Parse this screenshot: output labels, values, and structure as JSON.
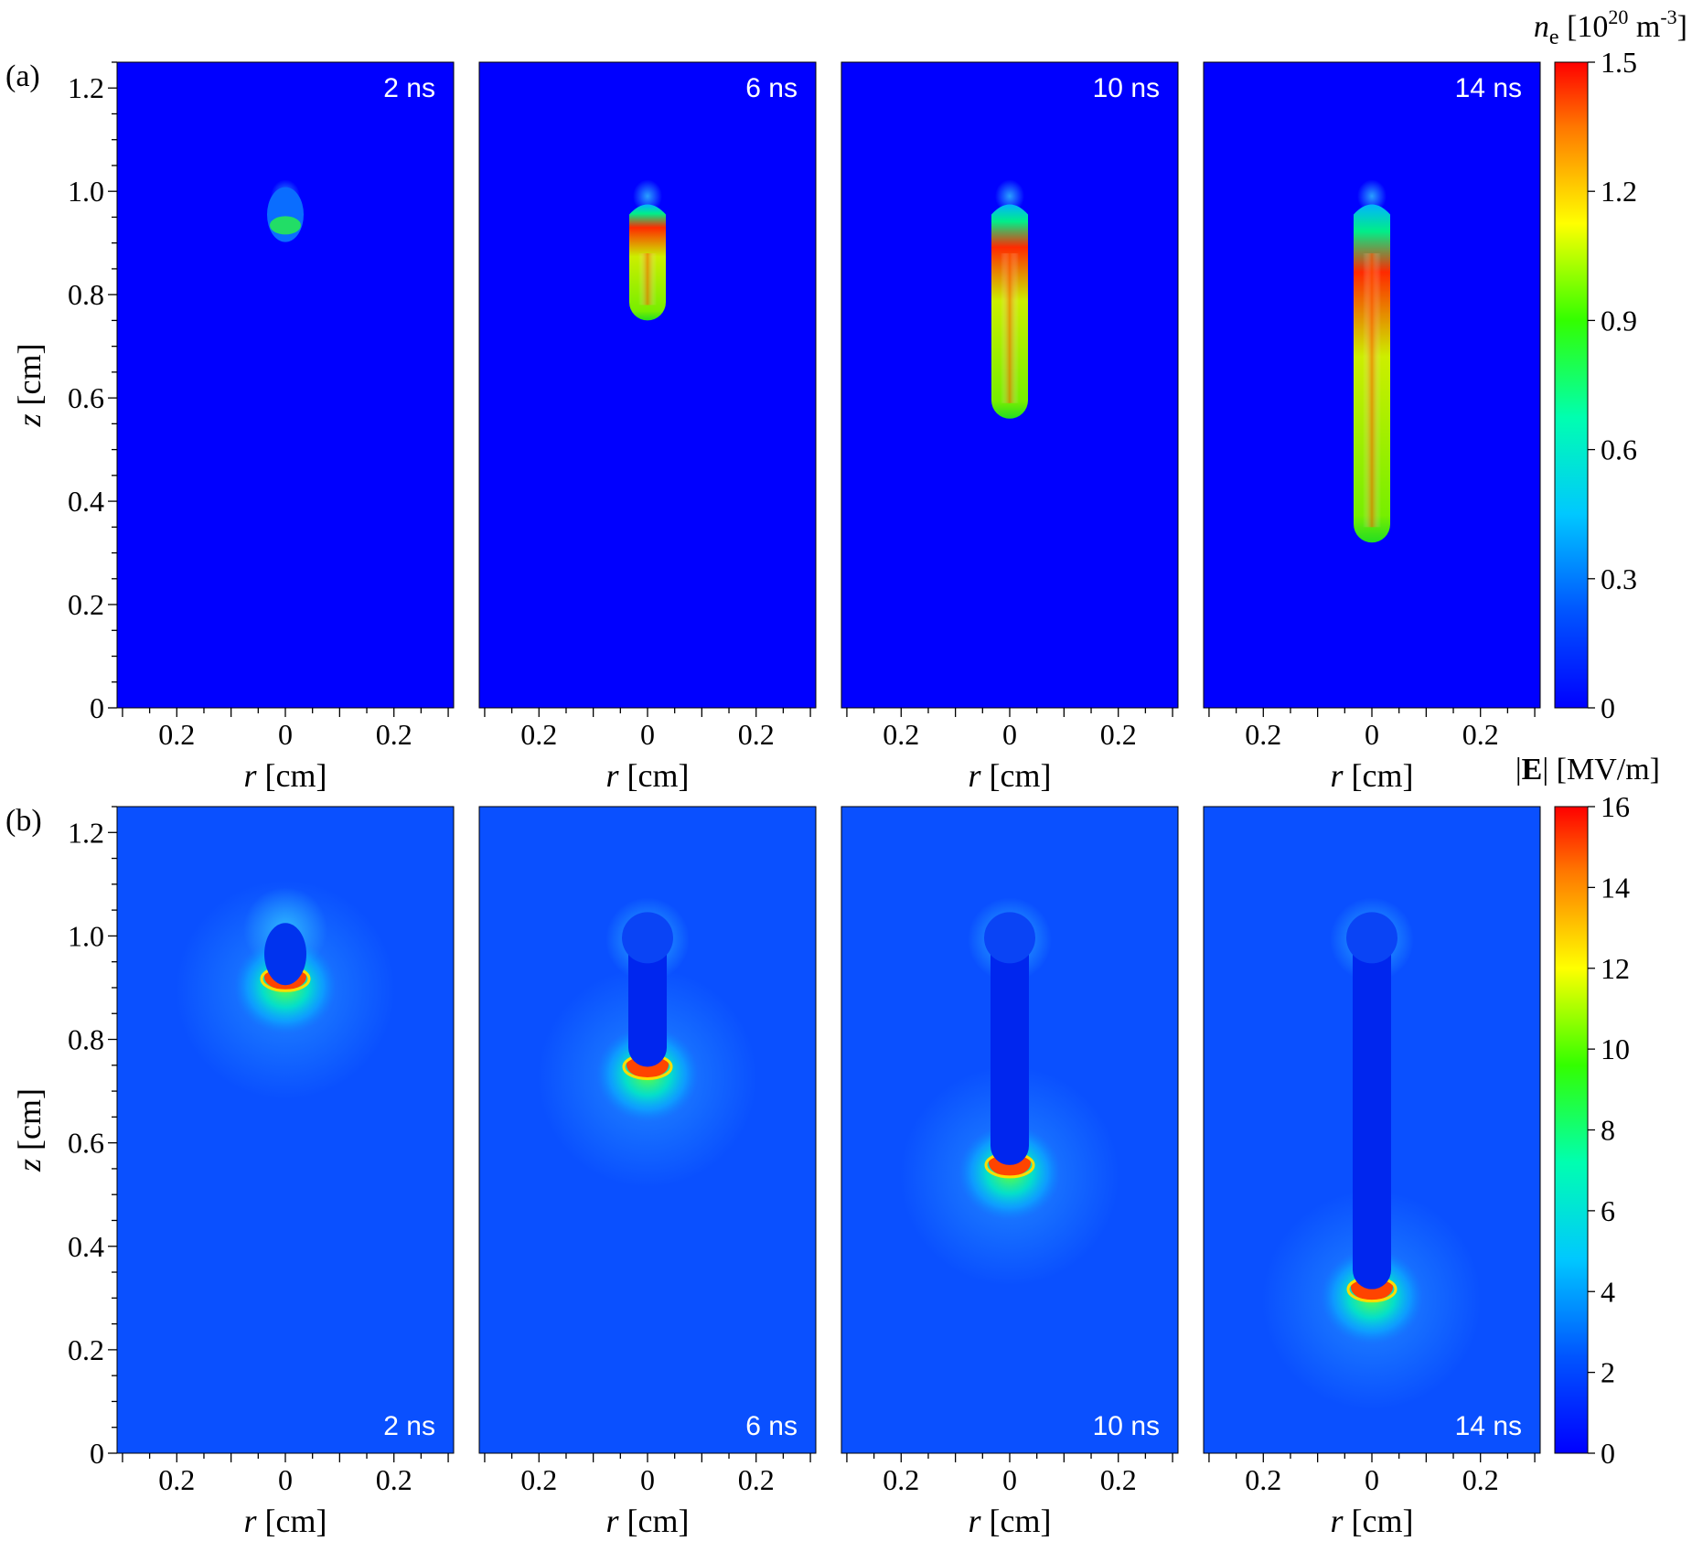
{
  "chart_data": [
    {
      "type": "heatmap",
      "panel_label": "(a)",
      "quantity_label": "n_e [10^20 m^-3]",
      "colorbar": {
        "title_parts": {
          "symbol": "n",
          "subscript": "e",
          "open": " [10",
          "exp": "20",
          "unit": " m",
          "unit_exp": "-3",
          "close": "]"
        },
        "min": 0,
        "max": 1.5,
        "ticks": [
          "0",
          "0.3",
          "0.6",
          "0.9",
          "1.2",
          "1.5"
        ],
        "tick_values": [
          0,
          0.3,
          0.6,
          0.9,
          1.2,
          1.5
        ]
      },
      "xlabel": {
        "symbol": "r",
        "unit": " [cm]"
      },
      "ylabel": {
        "symbol": "z",
        "unit": " [cm]"
      },
      "xticks": [
        "0.2",
        "0",
        "0.2"
      ],
      "xtick_values": [
        -0.2,
        0,
        0.2
      ],
      "xlim": [
        -0.31,
        0.31
      ],
      "yticks": [
        "0",
        "0.2",
        "0.4",
        "0.6",
        "0.8",
        "1.0",
        "1.2"
      ],
      "ytick_values": [
        0,
        0.2,
        0.4,
        0.6,
        0.8,
        1.0,
        1.2
      ],
      "ylim": [
        0,
        1.25
      ],
      "frames": [
        {
          "time": "2 ns",
          "head_z": 0.92,
          "tail_z": 0.98,
          "peak": 0.85,
          "peak_z": 0.94
        },
        {
          "time": "6 ns",
          "head_z": 0.75,
          "tail_z": 0.98,
          "peak": 1.5,
          "peak_z": 0.84
        },
        {
          "time": "10 ns",
          "head_z": 0.56,
          "tail_z": 0.98,
          "peak": 1.5,
          "peak_z": 0.84
        },
        {
          "time": "14 ns",
          "head_z": 0.32,
          "tail_z": 0.98,
          "peak": 1.5,
          "peak_z": 0.84
        }
      ]
    },
    {
      "type": "heatmap",
      "panel_label": "(b)",
      "quantity_label": "|E| [MV/m]",
      "colorbar": {
        "title_parts": {
          "bar_open": "|",
          "symbol": "E",
          "bar_close": "|",
          "unit": " [MV/m]"
        },
        "min": 0,
        "max": 16,
        "ticks": [
          "0",
          "2",
          "4",
          "6",
          "8",
          "10",
          "12",
          "14",
          "16"
        ],
        "tick_values": [
          0,
          2,
          4,
          6,
          8,
          10,
          12,
          14,
          16
        ]
      },
      "xlabel": {
        "symbol": "r",
        "unit": " [cm]"
      },
      "ylabel": {
        "symbol": "z",
        "unit": " [cm]"
      },
      "xticks": [
        "0.2",
        "0",
        "0.2"
      ],
      "xtick_values": [
        -0.2,
        0,
        0.2
      ],
      "xlim": [
        -0.31,
        0.31
      ],
      "yticks": [
        "0",
        "0.2",
        "0.4",
        "0.6",
        "0.8",
        "1.0",
        "1.2"
      ],
      "ytick_values": [
        0,
        0.2,
        0.4,
        0.6,
        0.8,
        1.0,
        1.2
      ],
      "ylim": [
        0,
        1.25
      ],
      "frames": [
        {
          "time": "2 ns",
          "head_z": 0.91,
          "tail_z": 1.02,
          "peak_field": 16
        },
        {
          "time": "6 ns",
          "head_z": 0.74,
          "tail_z": 1.0,
          "peak_field": 16
        },
        {
          "time": "10 ns",
          "head_z": 0.55,
          "tail_z": 1.0,
          "peak_field": 16
        },
        {
          "time": "14 ns",
          "head_z": 0.31,
          "tail_z": 1.0,
          "peak_field": 16
        }
      ]
    }
  ]
}
